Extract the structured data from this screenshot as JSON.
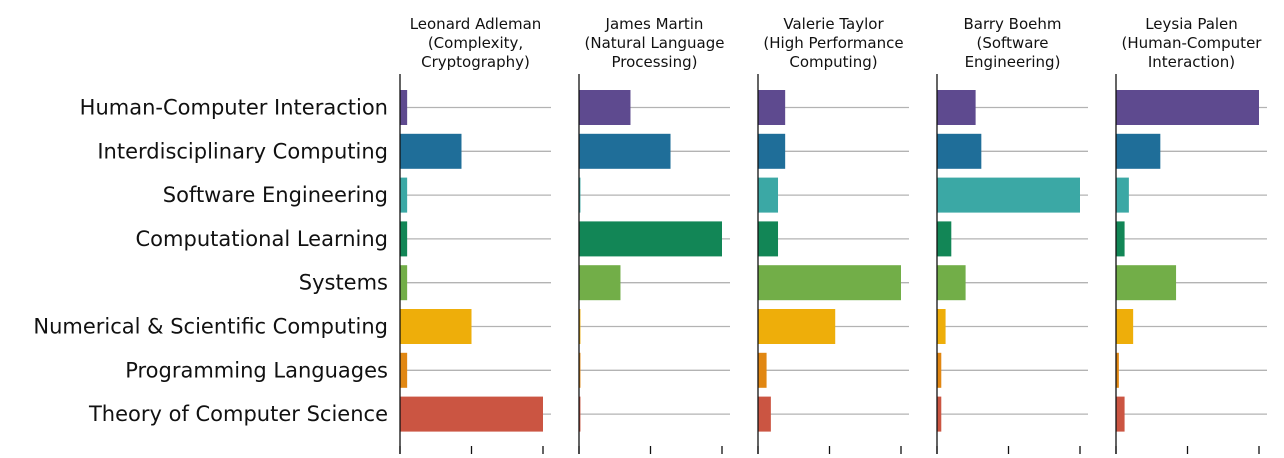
{
  "chart_data": {
    "type": "bar",
    "orientation": "horizontal",
    "layout": "small-multiples",
    "categories": [
      "Human-Computer Interaction",
      "Interdisciplinary Computing",
      "Software Engineering",
      "Computational Learning",
      "Systems",
      "Numerical & Scientific Computing",
      "Programming Languages",
      "Theory of Computer Science"
    ],
    "category_colors": [
      "#5e4a8f",
      "#1f6e99",
      "#3ba8a5",
      "#128656",
      "#72ae48",
      "#eeae0a",
      "#e18712",
      "#cb5542"
    ],
    "grid": true,
    "legend": "none",
    "xlim": [
      0,
      1
    ],
    "panels": [
      {
        "title": [
          "Leonard Adleman",
          "(Complexity,",
          "Cryptography)"
        ],
        "values": [
          0.05,
          0.43,
          0.05,
          0.05,
          0.05,
          0.5,
          0.05,
          1.0
        ]
      },
      {
        "title": [
          "James Martin",
          "(Natural Language",
          "Processing)"
        ],
        "values": [
          0.36,
          0.64,
          0.01,
          1.0,
          0.29,
          0.01,
          0.01,
          0.01
        ]
      },
      {
        "title": [
          "Valerie Taylor",
          "(High Performance",
          "Computing)"
        ],
        "values": [
          0.19,
          0.19,
          0.14,
          0.14,
          1.0,
          0.54,
          0.06,
          0.09
        ]
      },
      {
        "title": [
          "Barry Boehm",
          "(Software",
          "Engineering)"
        ],
        "values": [
          0.27,
          0.31,
          1.0,
          0.1,
          0.2,
          0.06,
          0.03,
          0.03
        ]
      },
      {
        "title": [
          "Leysia Palen",
          "(Human-Computer",
          "Interaction)"
        ],
        "values": [
          1.0,
          0.31,
          0.09,
          0.06,
          0.42,
          0.12,
          0.02,
          0.06
        ]
      }
    ]
  }
}
